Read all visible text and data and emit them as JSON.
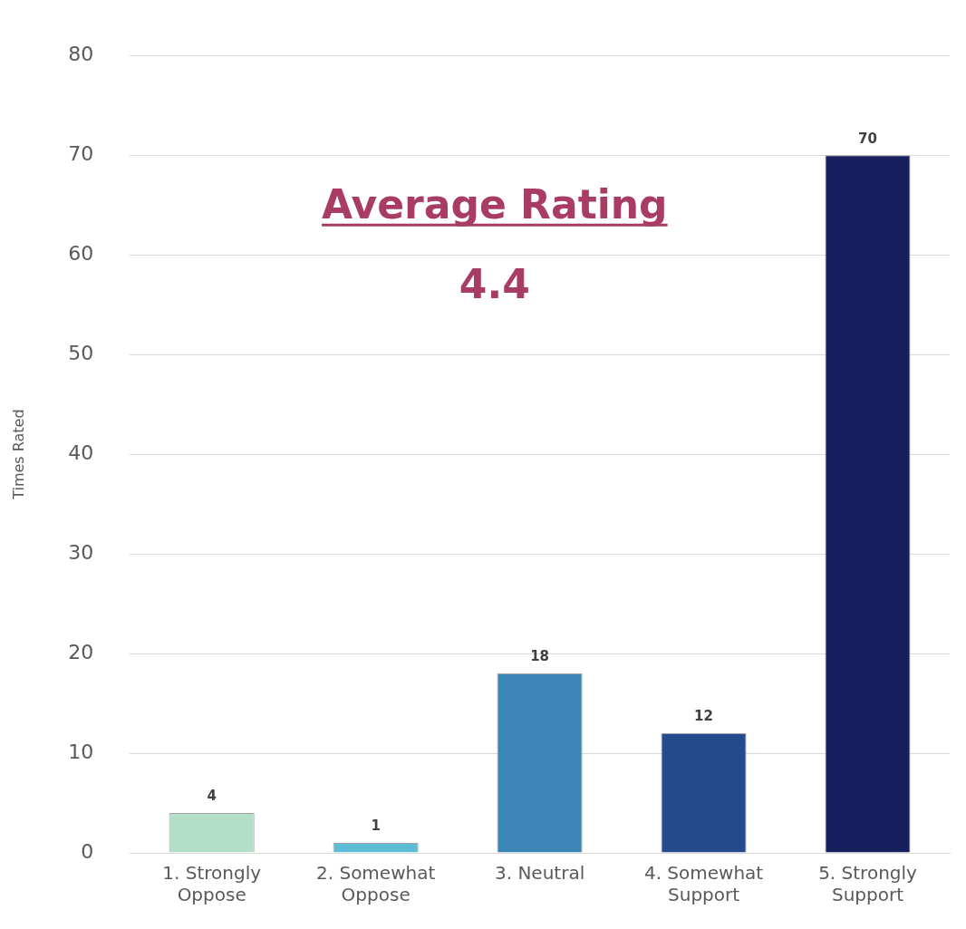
{
  "chart_data": {
    "type": "bar",
    "ylabel": "Times Rated",
    "categories": [
      "1. Strongly Oppose",
      "2. Somewhat Oppose",
      "3. Neutral",
      "4. Somewhat Support",
      "5. Strongly Support"
    ],
    "values": [
      4,
      1,
      18,
      12,
      70
    ],
    "colors": [
      "#b3dfc9",
      "#5bbcd6",
      "#3a86b6",
      "#264a8e",
      "#161e5e"
    ],
    "ylim": [
      0,
      80
    ],
    "yticks": [
      0,
      10,
      20,
      30,
      40,
      50,
      60,
      70,
      80
    ],
    "grid": "y",
    "legend": false,
    "data_labels": true,
    "annotations": [
      "Average Rating",
      "4.4"
    ]
  }
}
